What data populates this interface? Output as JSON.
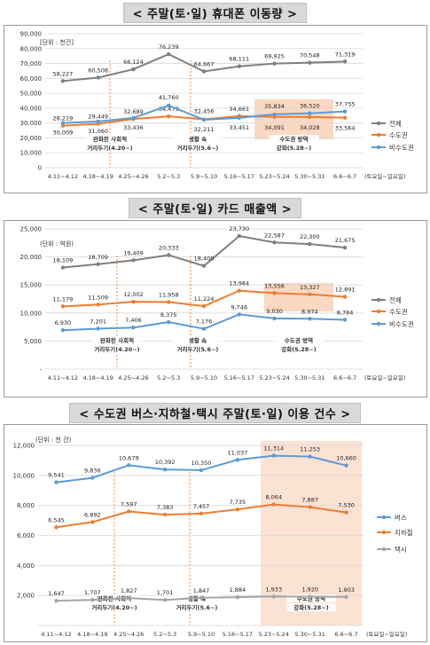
{
  "charts": [
    {
      "title": "< 주말(토·일) 휴대폰 이동량 >",
      "unit": "[단위 : 천건]",
      "x_range_label": "(토요일~일요일)",
      "colors": {
        "전체": "#7f7f7f",
        "수도권": "#ed7d31",
        "비수도권": "#5b9bd5"
      },
      "annotations": [
        {
          "label": [
            "완화된 사회적",
            "거리두기(4.20~)"
          ]
        },
        {
          "label": [
            "생활 속",
            "거리두기(5.6~)"
          ]
        },
        {
          "label": [
            "수도권 방역",
            "강화(5.28~)"
          ]
        }
      ],
      "chart_data": {
        "type": "line",
        "categories": [
          "4.11~4.12",
          "4.18~4.19",
          "4.25~4.26",
          "5.2~5.3",
          "5.9~5.10",
          "5.16~5.17",
          "5.23~5.24",
          "5.30~5.31",
          "6.6~6.7"
        ],
        "ylim": [
          0,
          90000
        ],
        "yticks": [
          "0",
          "10,000",
          "20,000",
          "30,000",
          "40,000",
          "50,000",
          "60,000",
          "70,000",
          "80,000",
          "90,000"
        ],
        "series": [
          {
            "name": "전체",
            "values": [
              58227,
              60508,
              66124,
              76239,
              64667,
              68111,
              69925,
              70548,
              71319
            ],
            "labels": [
              "58,227",
              "60,508",
              "66,124",
              "76,239",
              "64,667",
              "68,111",
              "69,925",
              "70,548",
              "71,319"
            ]
          },
          {
            "name": "수도권",
            "values": [
              28219,
              29449,
              32689,
              34479,
              32456,
              34661,
              34091,
              34028,
              33564
            ],
            "labels": [
              "28,219",
              "29,449",
              "32,689",
              "34,479",
              "32,456",
              "34,661",
              "34,091",
              "34,028",
              "33,564"
            ]
          },
          {
            "name": "비수도권",
            "values": [
              30009,
              31060,
              33436,
              41760,
              32211,
              33451,
              35834,
              36520,
              37755
            ],
            "labels": [
              "30,009",
              "31,060",
              "33,436",
              "41,760",
              "32,211",
              "33,451",
              "35,834",
              "36,520",
              "37,755"
            ]
          }
        ]
      }
    },
    {
      "title": "< 주말(토·일) 카드 매출액 >",
      "unit": "(단위 : 억원)",
      "x_range_label": "(토요일~일요일)",
      "colors": {
        "전체": "#7f7f7f",
        "수도권": "#ed7d31",
        "비수도권": "#5b9bd5"
      },
      "annotations": [
        {
          "label": [
            "완화된 사회적",
            "거리두기(4.20~)"
          ]
        },
        {
          "label": [
            "생활 속",
            "거리두기(5.6~)"
          ]
        },
        {
          "label": [
            "수도권 방역",
            "강화(5.28~)"
          ]
        }
      ],
      "chart_data": {
        "type": "line",
        "categories": [
          "4.11~4.12",
          "4.18~4.19",
          "4.25~4.26",
          "5.2~5.3",
          "5.9~5.10",
          "5.16~5.17",
          "5.23~5.24",
          "5.30~5.31",
          "6.6~6.7"
        ],
        "ylim": [
          0,
          25000
        ],
        "yticks": [
          "-",
          "5,000",
          "10,000",
          "15,000",
          "20,000",
          "25,000"
        ],
        "series": [
          {
            "name": "전체",
            "values": [
              18109,
              18709,
              19409,
              20333,
              18400,
              23730,
              22587,
              22300,
              21675
            ],
            "labels": [
              "18,109",
              "18,709",
              "19,409",
              "20,333",
              "18,400",
              "23,730",
              "22,587",
              "22,300",
              "21,675"
            ]
          },
          {
            "name": "수도권",
            "values": [
              11179,
              11509,
              12002,
              11958,
              11224,
              13984,
              13556,
              13327,
              12891
            ],
            "labels": [
              "11,179",
              "11,509",
              "12,002",
              "11,958",
              "11,224",
              "13,984",
              "13,556",
              "13,327",
              "12,891"
            ]
          },
          {
            "name": "비수도권",
            "values": [
              6930,
              7201,
              7406,
              8375,
              7176,
              9746,
              9030,
              8974,
              8784
            ],
            "labels": [
              "6,930",
              "7,201",
              "7,406",
              "8,375",
              "7,176",
              "9,746",
              "9,030",
              "8,974",
              "8,784"
            ]
          }
        ]
      }
    },
    {
      "title": "< 수도권 버스·지하철·택시 주말(토·일) 이용 건수 >",
      "unit": "(단위 : 천 건)",
      "x_range_label": "(토요일~일요일)",
      "colors": {
        "버스": "#5b9bd5",
        "지하철": "#ed7d31",
        "택시": "#a5a5a5"
      },
      "annotations": [
        {
          "label": [
            "완화된 사회적",
            "거리두기(4.20~)"
          ]
        },
        {
          "label": [
            "생활 속",
            "거리두기(5.6~)"
          ]
        },
        {
          "label": [
            "수도권 방역",
            "강화(5.28~)"
          ]
        }
      ],
      "chart_data": {
        "type": "line",
        "categories": [
          "4.11~4.12",
          "4.18~4.19",
          "4.25~4.26",
          "5.2~5.3",
          "5.9~5.10",
          "5.16~5.17",
          "5.23~5.24",
          "5.30~5.31",
          "6.6~6.7"
        ],
        "ylim": [
          0,
          12000
        ],
        "yticks": [
          "",
          "2,000",
          "4,000",
          "6,000",
          "8,000",
          "10,000",
          "12,000"
        ],
        "series": [
          {
            "name": "버스",
            "values": [
              9541,
              9836,
              10679,
              10392,
              10350,
              11037,
              11314,
              11253,
              10660
            ],
            "labels": [
              "9,541",
              "9,836",
              "10,679",
              "10,392",
              "10,350",
              "11,037",
              "11,314",
              "11,253",
              "10,660"
            ]
          },
          {
            "name": "지하철",
            "values": [
              6545,
              6892,
              7597,
              7383,
              7457,
              7735,
              8064,
              7887,
              7530
            ],
            "labels": [
              "6,545",
              "6,892",
              "7,597",
              "7,383",
              "7,457",
              "7,735",
              "8,064",
              "7,887",
              "7,530"
            ]
          },
          {
            "name": "택시",
            "values": [
              1647,
              1707,
              1827,
              1701,
              1847,
              1884,
              1933,
              1920,
              1903
            ],
            "labels": [
              "1,647",
              "1,707",
              "1,827",
              "1,701",
              "1,847",
              "1,884",
              "1,933",
              "1,920",
              "1,903"
            ]
          }
        ]
      }
    }
  ]
}
